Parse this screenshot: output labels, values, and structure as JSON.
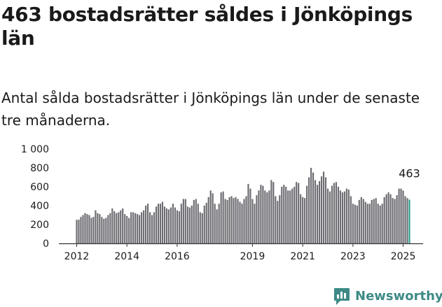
{
  "title": "463 bostadsrätter såldes i Jönköpings län",
  "subtitle": "Antal sålda bostadsrätter i Jönköpings län under de senaste tre månaderna.",
  "brand": {
    "name": "Newsworthy",
    "icon": "newsworthy-logo-icon",
    "color": "#3d8a86"
  },
  "colors": {
    "bar": "#6d6c72",
    "highlight": "#2a9d8f",
    "axis": "#333333",
    "text": "#1a1a1a"
  },
  "chart_data": {
    "type": "bar",
    "title": "463 bostadsrätter såldes i Jönköpings län",
    "xlabel": "",
    "ylabel": "",
    "ylim": [
      0,
      1000
    ],
    "yticks": [
      0,
      200,
      400,
      600,
      800,
      1000
    ],
    "ytick_labels": [
      "0",
      "200",
      "400",
      "600",
      "800",
      "1 000"
    ],
    "xtick_labels": [
      {
        "label": "2012",
        "period": "2012-01"
      },
      {
        "label": "2014",
        "period": "2014-01"
      },
      {
        "label": "2016",
        "period": "2016-01"
      },
      {
        "label": "2019",
        "period": "2019-01"
      },
      {
        "label": "2021",
        "period": "2021-01"
      },
      {
        "label": "2023",
        "period": "2023-01"
      },
      {
        "label": "2025",
        "period": "2025-01"
      }
    ],
    "grid": false,
    "legend": "none",
    "period_start": "2012-01",
    "period_step": "month",
    "highlight_label": "463",
    "values": [
      250,
      250,
      280,
      300,
      320,
      310,
      300,
      270,
      280,
      350,
      320,
      310,
      280,
      260,
      270,
      300,
      320,
      370,
      340,
      320,
      330,
      350,
      370,
      310,
      290,
      270,
      330,
      330,
      320,
      310,
      300,
      330,
      350,
      400,
      420,
      330,
      300,
      330,
      390,
      420,
      420,
      440,
      390,
      370,
      360,
      380,
      420,
      380,
      350,
      340,
      420,
      470,
      470,
      390,
      380,
      400,
      460,
      470,
      420,
      330,
      320,
      400,
      430,
      490,
      560,
      530,
      420,
      360,
      420,
      540,
      550,
      470,
      460,
      490,
      500,
      480,
      490,
      470,
      440,
      420,
      470,
      500,
      630,
      580,
      470,
      420,
      510,
      560,
      620,
      610,
      560,
      540,
      560,
      670,
      650,
      500,
      450,
      510,
      600,
      620,
      600,
      560,
      560,
      580,
      600,
      650,
      640,
      520,
      490,
      480,
      610,
      700,
      800,
      750,
      670,
      620,
      660,
      710,
      760,
      700,
      580,
      550,
      610,
      640,
      650,
      600,
      560,
      540,
      550,
      580,
      570,
      500,
      420,
      410,
      400,
      460,
      490,
      470,
      440,
      420,
      420,
      460,
      470,
      480,
      420,
      400,
      420,
      490,
      520,
      540,
      520,
      480,
      470,
      510,
      580,
      580,
      560,
      500,
      480,
      463
    ]
  }
}
